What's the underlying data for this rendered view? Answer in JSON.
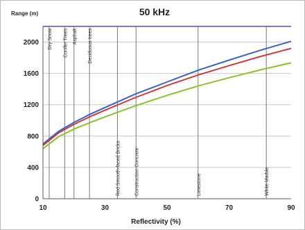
{
  "chart_data": {
    "type": "line",
    "title": "50 kHz",
    "ylabel": "Range (m)",
    "xlabel": "Reflectivity (%)",
    "xlim": [
      10,
      90
    ],
    "ylim": [
      0,
      2200
    ],
    "x_ticks": [
      10,
      30,
      50,
      70,
      90
    ],
    "y_ticks": [
      0,
      400,
      800,
      1200,
      1600,
      2000
    ],
    "grid": "horizontal",
    "series": [
      {
        "color": "#3a62c6",
        "x": [
          10,
          15,
          20,
          25,
          30,
          40,
          50,
          60,
          70,
          80,
          90
        ],
        "y": [
          700,
          860,
          975,
          1075,
          1165,
          1340,
          1490,
          1640,
          1770,
          1895,
          2010
        ]
      },
      {
        "color": "#cc3b3b",
        "x": [
          10,
          15,
          20,
          25,
          30,
          40,
          50,
          60,
          70,
          80,
          90
        ],
        "y": [
          680,
          840,
          950,
          1045,
          1130,
          1295,
          1445,
          1580,
          1700,
          1815,
          1920
        ]
      },
      {
        "color": "#8fbf2a",
        "x": [
          10,
          15,
          20,
          25,
          30,
          40,
          50,
          60,
          70,
          80,
          90
        ],
        "y": [
          640,
          790,
          890,
          970,
          1045,
          1190,
          1320,
          1440,
          1545,
          1645,
          1735
        ]
      }
    ],
    "vertical_markers": [
      {
        "x": 12,
        "label": "Dry Snow",
        "pos": "top"
      },
      {
        "x": 17,
        "label": "Conifer Trees",
        "pos": "top"
      },
      {
        "x": 20,
        "label": "Asphalt",
        "pos": "top"
      },
      {
        "x": 25,
        "label": "Deciduous trees",
        "pos": "top"
      },
      {
        "x": 34,
        "label": "Red Smooth-faced Bricks",
        "pos": "bottom"
      },
      {
        "x": 40,
        "label": "Construction Concrete",
        "pos": "bottom"
      },
      {
        "x": 60,
        "label": "Limestone",
        "pos": "bottom"
      },
      {
        "x": 82,
        "label": "White Marble",
        "pos": "bottom"
      }
    ],
    "top_line_color": "#4b4fc8"
  }
}
